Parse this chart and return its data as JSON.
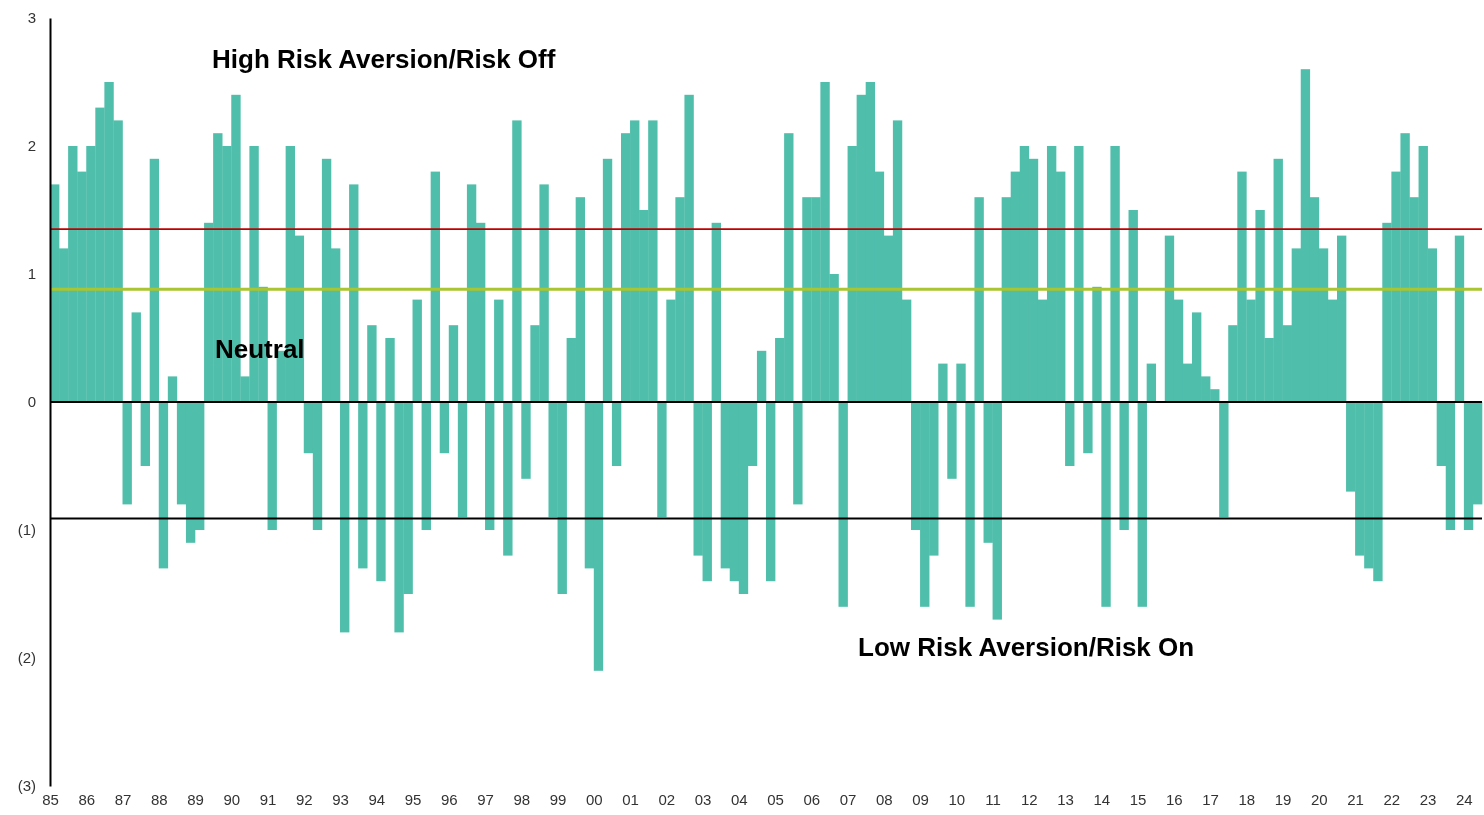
{
  "chart_data": {
    "type": "bar",
    "color": "#4fbeab",
    "x": [
      1985,
      1985.25,
      1985.5,
      1985.75,
      1986,
      1986.25,
      1986.5,
      1986.75,
      1987,
      1987.25,
      1987.5,
      1987.75,
      1988,
      1988.25,
      1988.5,
      1988.75,
      1989,
      1989.25,
      1989.5,
      1989.75,
      1990,
      1990.25,
      1990.5,
      1990.75,
      1991,
      1991.25,
      1991.5,
      1991.75,
      1992,
      1992.25,
      1992.5,
      1992.75,
      1993,
      1993.25,
      1993.5,
      1993.75,
      1994,
      1994.25,
      1994.5,
      1994.75,
      1995,
      1995.25,
      1995.5,
      1995.75,
      1996,
      1996.25,
      1996.5,
      1996.75,
      1997,
      1997.25,
      1997.5,
      1997.75,
      1998,
      1998.25,
      1998.5,
      1998.75,
      1999,
      1999.25,
      1999.5,
      1999.75,
      2000,
      2000.25,
      2000.5,
      2000.75,
      2001,
      2001.25,
      2001.5,
      2001.75,
      2002,
      2002.25,
      2002.5,
      2002.75,
      2003,
      2003.25,
      2003.5,
      2003.75,
      2004,
      2004.25,
      2004.5,
      2004.75,
      2005,
      2005.25,
      2005.5,
      2005.75,
      2006,
      2006.25,
      2006.5,
      2006.75,
      2007,
      2007.25,
      2007.5,
      2007.75,
      2008,
      2008.25,
      2008.5,
      2008.75,
      2009,
      2009.25,
      2009.5,
      2009.75,
      2010,
      2010.25,
      2010.5,
      2010.75,
      2011,
      2011.25,
      2011.5,
      2011.75,
      2012,
      2012.25,
      2012.5,
      2012.75,
      2013,
      2013.25,
      2013.5,
      2013.75,
      2014,
      2014.25,
      2014.5,
      2014.75,
      2015,
      2015.25,
      2015.5,
      2015.75,
      2016,
      2016.25,
      2016.5,
      2016.75,
      2017,
      2017.25,
      2017.5,
      2017.75,
      2018,
      2018.25,
      2018.5,
      2018.75,
      2019,
      2019.25,
      2019.5,
      2019.75,
      2020,
      2020.25,
      2020.5,
      2020.75,
      2021,
      2021.25,
      2021.5,
      2021.75,
      2022,
      2022.25,
      2022.5,
      2022.75,
      2023,
      2023.25,
      2023.5,
      2023.75,
      2024,
      2024.25
    ],
    "values": [
      1.7,
      1.2,
      2.0,
      1.8,
      2.0,
      2.3,
      2.5,
      2.2,
      -0.8,
      0.7,
      -0.5,
      1.9,
      -1.3,
      0.2,
      -0.8,
      -1.1,
      -1.0,
      1.4,
      2.1,
      2.0,
      2.4,
      0.2,
      2.0,
      0.9,
      -1.0,
      0.4,
      2.0,
      1.3,
      -0.4,
      -1.0,
      1.9,
      1.2,
      -1.8,
      1.7,
      -1.3,
      0.6,
      -1.4,
      0.5,
      -1.8,
      -1.5,
      0.8,
      -1.0,
      1.8,
      -0.4,
      0.6,
      -0.9,
      1.7,
      1.4,
      -1.0,
      0.8,
      -1.2,
      2.2,
      -0.6,
      0.6,
      1.7,
      -0.9,
      -1.5,
      0.5,
      1.6,
      -1.3,
      -2.1,
      1.9,
      -0.5,
      2.1,
      2.2,
      1.5,
      2.2,
      -0.9,
      0.8,
      1.6,
      2.4,
      -1.2,
      -1.4,
      1.4,
      -1.3,
      -1.4,
      -1.5,
      -0.5,
      0.4,
      -1.4,
      0.5,
      2.1,
      -0.8,
      1.6,
      1.6,
      2.5,
      1.0,
      -1.6,
      2.0,
      2.4,
      2.5,
      1.8,
      1.3,
      2.2,
      0.8,
      -1.0,
      -1.6,
      -1.2,
      0.3,
      -0.6,
      0.3,
      -1.6,
      1.6,
      -1.1,
      -1.7,
      1.6,
      1.8,
      2.0,
      1.9,
      0.8,
      2.0,
      1.8,
      -0.5,
      2.0,
      -0.4,
      0.9,
      -1.6,
      2.0,
      -1.0,
      1.5,
      -1.6,
      0.3,
      0.0,
      1.3,
      0.8,
      0.3,
      0.7,
      0.2,
      0.1,
      -0.9,
      0.6,
      1.8,
      0.8,
      1.5,
      0.5,
      1.9,
      0.6,
      1.2,
      2.6,
      1.6,
      1.2,
      0.8,
      1.3,
      -0.7,
      -1.2,
      -1.3,
      -1.4,
      1.4,
      1.8,
      2.1,
      1.6,
      2.0,
      1.2,
      -0.5,
      -1.0,
      1.3,
      -1.0,
      -0.8
    ],
    "xlim": [
      1985,
      2024.5
    ],
    "xticks": [
      {
        "value": 1985,
        "label": "85"
      },
      {
        "value": 1986,
        "label": "86"
      },
      {
        "value": 1987,
        "label": "87"
      },
      {
        "value": 1988,
        "label": "88"
      },
      {
        "value": 1989,
        "label": "89"
      },
      {
        "value": 1990,
        "label": "90"
      },
      {
        "value": 1991,
        "label": "91"
      },
      {
        "value": 1992,
        "label": "92"
      },
      {
        "value": 1993,
        "label": "93"
      },
      {
        "value": 1994,
        "label": "94"
      },
      {
        "value": 1995,
        "label": "95"
      },
      {
        "value": 1996,
        "label": "96"
      },
      {
        "value": 1997,
        "label": "97"
      },
      {
        "value": 1998,
        "label": "98"
      },
      {
        "value": 1999,
        "label": "99"
      },
      {
        "value": 2000,
        "label": "00"
      },
      {
        "value": 2001,
        "label": "01"
      },
      {
        "value": 2002,
        "label": "02"
      },
      {
        "value": 2003,
        "label": "03"
      },
      {
        "value": 2004,
        "label": "04"
      },
      {
        "value": 2005,
        "label": "05"
      },
      {
        "value": 2006,
        "label": "06"
      },
      {
        "value": 2007,
        "label": "07"
      },
      {
        "value": 2008,
        "label": "08"
      },
      {
        "value": 2009,
        "label": "09"
      },
      {
        "value": 2010,
        "label": "10"
      },
      {
        "value": 2011,
        "label": "11"
      },
      {
        "value": 2012,
        "label": "12"
      },
      {
        "value": 2013,
        "label": "13"
      },
      {
        "value": 2014,
        "label": "14"
      },
      {
        "value": 2015,
        "label": "15"
      },
      {
        "value": 2016,
        "label": "16"
      },
      {
        "value": 2017,
        "label": "17"
      },
      {
        "value": 2018,
        "label": "18"
      },
      {
        "value": 2019,
        "label": "19"
      },
      {
        "value": 2020,
        "label": "20"
      },
      {
        "value": 2021,
        "label": "21"
      },
      {
        "value": 2022,
        "label": "22"
      },
      {
        "value": 2023,
        "label": "23"
      },
      {
        "value": 2024,
        "label": "24"
      }
    ],
    "ylim": [
      -3,
      3
    ],
    "yticks": [
      3,
      2,
      1,
      0,
      {
        "value": -1,
        "label": "(1)"
      },
      {
        "value": -2,
        "label": "(2)"
      },
      {
        "value": -3,
        "label": "(3)"
      }
    ],
    "ref_lines": [
      {
        "axis": "y",
        "value": 1.35,
        "color": "#c00000"
      },
      {
        "axis": "y",
        "value": 0.88,
        "color": "#a9c52f"
      },
      {
        "axis": "y",
        "value": -0.91,
        "color": "#000000"
      }
    ],
    "annotations": [
      "High Risk Aversion/Risk Off",
      "Neutral",
      "Low Risk Aversion/Risk On"
    ]
  }
}
